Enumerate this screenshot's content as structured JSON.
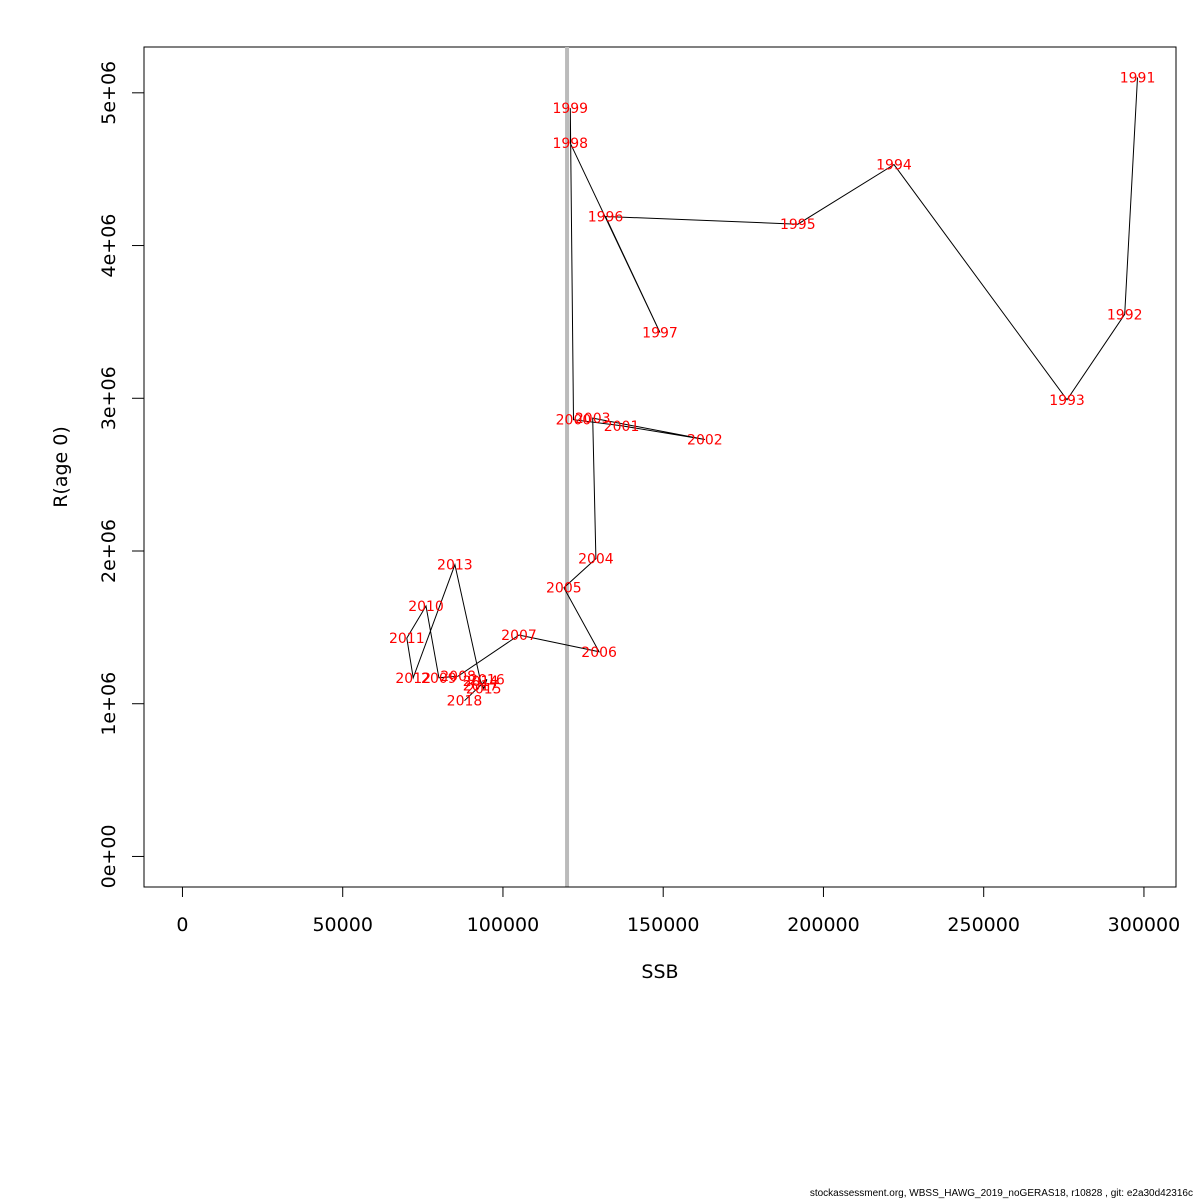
{
  "chart_data": {
    "type": "scatter",
    "title": "",
    "xlabel": "SSB",
    "ylabel": "R(age 0)",
    "xlim": [
      -12000,
      310000
    ],
    "ylim": [
      -200000,
      5300000
    ],
    "xticks": [
      0,
      50000,
      100000,
      150000,
      200000,
      250000,
      300000
    ],
    "xtick_labels": [
      "0",
      "50000",
      "100000",
      "150000",
      "200000",
      "250000",
      "300000"
    ],
    "yticks": [
      0,
      1000000,
      2000000,
      3000000,
      4000000,
      5000000
    ],
    "ytick_labels": [
      "0e+00",
      "1e+06",
      "2e+06",
      "3e+06",
      "4e+06",
      "5e+06"
    ],
    "colors": {
      "point_label": "#ff0000",
      "line": "#000000",
      "vline": "#bbbbbb",
      "axis": "#000000"
    },
    "reference_line": {
      "x": 120000,
      "color": "#bbbbbb"
    },
    "points": [
      {
        "label": "1991",
        "x": 298000,
        "y": 5100000
      },
      {
        "label": "1992",
        "x": 294000,
        "y": 3550000
      },
      {
        "label": "1993",
        "x": 276000,
        "y": 2990000
      },
      {
        "label": "1994",
        "x": 222000,
        "y": 4530000
      },
      {
        "label": "1995",
        "x": 192000,
        "y": 4140000
      },
      {
        "label": "1996",
        "x": 132000,
        "y": 4190000
      },
      {
        "label": "1997",
        "x": 149000,
        "y": 3430000
      },
      {
        "label": "1998",
        "x": 121000,
        "y": 4670000
      },
      {
        "label": "1999",
        "x": 121000,
        "y": 4900000
      },
      {
        "label": "2000",
        "x": 122000,
        "y": 2860000
      },
      {
        "label": "2001",
        "x": 137000,
        "y": 2820000
      },
      {
        "label": "2002",
        "x": 163000,
        "y": 2730000
      },
      {
        "label": "2003",
        "x": 128000,
        "y": 2870000
      },
      {
        "label": "2004",
        "x": 129000,
        "y": 1950000
      },
      {
        "label": "2005",
        "x": 119000,
        "y": 1760000
      },
      {
        "label": "2006",
        "x": 130000,
        "y": 1340000
      },
      {
        "label": "2007",
        "x": 105000,
        "y": 1450000
      },
      {
        "label": "2008",
        "x": 86000,
        "y": 1180000
      },
      {
        "label": "2009",
        "x": 80000,
        "y": 1170000
      },
      {
        "label": "2010",
        "x": 76000,
        "y": 1640000
      },
      {
        "label": "2011",
        "x": 70000,
        "y": 1430000
      },
      {
        "label": "2012",
        "x": 72000,
        "y": 1170000
      },
      {
        "label": "2013",
        "x": 85000,
        "y": 1910000
      },
      {
        "label": "2014",
        "x": 93000,
        "y": 1150000
      },
      {
        "label": "2015",
        "x": 94000,
        "y": 1100000
      },
      {
        "label": "2016",
        "x": 95000,
        "y": 1160000
      },
      {
        "label": "2017",
        "x": 93000,
        "y": 1120000
      },
      {
        "label": "2018",
        "x": 88000,
        "y": 1020000
      }
    ]
  },
  "footer": "stockassessment.org, WBSS_HAWG_2019_noGERAS18, r10828 , git: e2a30d42316c"
}
